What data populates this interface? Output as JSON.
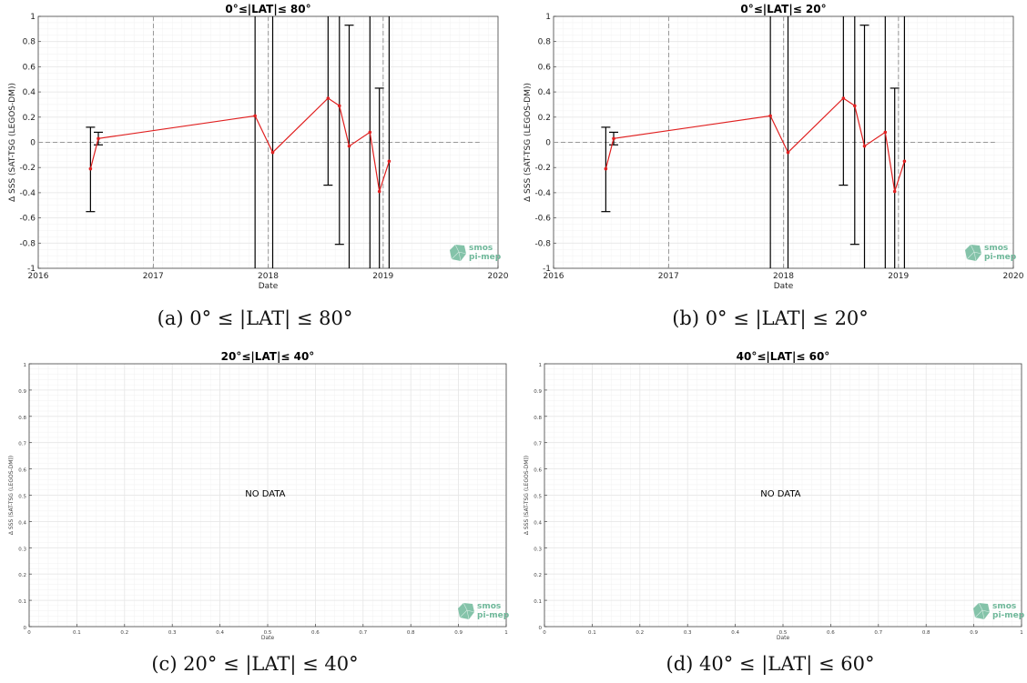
{
  "panels": [
    {
      "caption": "(a) 0° ≤ |LAT| ≤ 80°",
      "chart_data": {
        "type": "line",
        "title": "0°≤|LAT|≤ 80°",
        "xlabel": "Date",
        "ylabel": "Δ SSS (SAT-TSG (LEGOS-DM))",
        "xlim": [
          "2016-01-01",
          "2020-01-01"
        ],
        "ylim": [
          -1,
          1
        ],
        "xtick_labels": [
          "2016",
          "2017",
          "2018",
          "2019",
          "2020"
        ],
        "ytick_labels": [
          "-1",
          "-0.8",
          "-0.6",
          "-0.4",
          "-0.2",
          "0",
          "0.2",
          "0.4",
          "0.6",
          "0.8",
          "1"
        ],
        "grid": true,
        "zero_line": true,
        "year_lines": [
          "2017-01-01",
          "2018-01-01",
          "2019-01-01"
        ],
        "series": [
          {
            "color": "#e02020",
            "points": [
              {
                "x": "2016-06-15",
                "y": -0.21,
                "err_low": -0.55,
                "err_high": 0.12
              },
              {
                "x": "2016-07-10",
                "y": 0.03,
                "err_low": -0.02,
                "err_high": 0.08
              },
              {
                "x": "2017-11-20",
                "y": 0.21,
                "err_low": -1,
                "err_high": 1
              },
              {
                "x": "2018-01-15",
                "y": -0.08,
                "err_low": -1,
                "err_high": 1
              },
              {
                "x": "2018-07-10",
                "y": 0.35,
                "err_low": -0.34,
                "err_high": 1
              },
              {
                "x": "2018-08-15",
                "y": 0.29,
                "err_low": -0.81,
                "err_high": 1
              },
              {
                "x": "2018-09-15",
                "y": -0.03,
                "err_low": -1,
                "err_high": 0.93
              },
              {
                "x": "2018-11-20",
                "y": 0.08,
                "err_low": -1,
                "err_high": 1
              },
              {
                "x": "2018-12-20",
                "y": -0.39,
                "err_low": -1,
                "err_high": 0.43
              },
              {
                "x": "2019-01-20",
                "y": -0.15,
                "err_low": -1,
                "err_high": 1
              }
            ]
          }
        ]
      }
    },
    {
      "caption": "(b) 0° ≤ |LAT| ≤ 20°",
      "chart_data": {
        "type": "line",
        "title": "0°≤|LAT|≤ 20°",
        "xlabel": "Date",
        "ylabel": "Δ SSS (SAT-TSG (LEGOS-DM))",
        "xlim": [
          "2016-01-01",
          "2020-01-01"
        ],
        "ylim": [
          -1,
          1
        ],
        "xtick_labels": [
          "2016",
          "2017",
          "2018",
          "2019",
          "2020"
        ],
        "ytick_labels": [
          "-1",
          "-0.8",
          "-0.6",
          "-0.4",
          "-0.2",
          "0",
          "0.2",
          "0.4",
          "0.6",
          "0.8",
          "1"
        ],
        "grid": true,
        "zero_line": true,
        "year_lines": [
          "2017-01-01",
          "2018-01-01",
          "2019-01-01"
        ],
        "series": [
          {
            "color": "#e02020",
            "points": [
              {
                "x": "2016-06-15",
                "y": -0.21,
                "err_low": -0.55,
                "err_high": 0.12
              },
              {
                "x": "2016-07-10",
                "y": 0.03,
                "err_low": -0.02,
                "err_high": 0.08
              },
              {
                "x": "2017-11-20",
                "y": 0.21,
                "err_low": -1,
                "err_high": 1
              },
              {
                "x": "2018-01-15",
                "y": -0.08,
                "err_low": -1,
                "err_high": 1
              },
              {
                "x": "2018-07-10",
                "y": 0.35,
                "err_low": -0.34,
                "err_high": 1
              },
              {
                "x": "2018-08-15",
                "y": 0.29,
                "err_low": -0.81,
                "err_high": 1
              },
              {
                "x": "2018-09-15",
                "y": -0.03,
                "err_low": -1,
                "err_high": 0.93
              },
              {
                "x": "2018-11-20",
                "y": 0.08,
                "err_low": -1,
                "err_high": 1
              },
              {
                "x": "2018-12-20",
                "y": -0.39,
                "err_low": -1,
                "err_high": 0.43
              },
              {
                "x": "2019-01-20",
                "y": -0.15,
                "err_low": -1,
                "err_high": 1
              }
            ]
          }
        ]
      }
    },
    {
      "caption": "(c) 20° ≤ |LAT| ≤ 40°",
      "chart_data": {
        "type": "line",
        "title": "20°≤|LAT|≤ 40°",
        "xlabel": "Date",
        "ylabel": "Δ SSS (SAT-TSG (LEGOS-DM))",
        "xlim": [
          0,
          1
        ],
        "ylim": [
          0,
          1
        ],
        "xtick_labels": [
          "0",
          "0.1",
          "0.2",
          "0.3",
          "0.4",
          "0.5",
          "0.6",
          "0.7",
          "0.8",
          "0.9",
          "1"
        ],
        "ytick_labels": [
          "0",
          "0.1",
          "0.2",
          "0.3",
          "0.4",
          "0.5",
          "0.6",
          "0.7",
          "0.8",
          "0.9",
          "1"
        ],
        "grid": true,
        "annotation": "NO DATA",
        "series": []
      }
    },
    {
      "caption": "(d) 40° ≤ |LAT| ≤ 60°",
      "chart_data": {
        "type": "line",
        "title": "40°≤|LAT|≤ 60°",
        "xlabel": "Date",
        "ylabel": "Δ SSS (SAT-TSG (LEGOS-DM))",
        "xlim": [
          0,
          1
        ],
        "ylim": [
          0,
          1
        ],
        "xtick_labels": [
          "0",
          "0.1",
          "0.2",
          "0.3",
          "0.4",
          "0.5",
          "0.6",
          "0.7",
          "0.8",
          "0.9",
          "1"
        ],
        "ytick_labels": [
          "0",
          "0.1",
          "0.2",
          "0.3",
          "0.4",
          "0.5",
          "0.6",
          "0.7",
          "0.8",
          "0.9",
          "1"
        ],
        "grid": true,
        "annotation": "NO DATA",
        "series": []
      }
    }
  ],
  "logo": {
    "line1": "smos",
    "line2": "pi-mep",
    "color": "#6fb89a"
  },
  "colors": {
    "grid": "#e6e6e6",
    "dashed": "#999999",
    "errorbar": "#000000"
  }
}
